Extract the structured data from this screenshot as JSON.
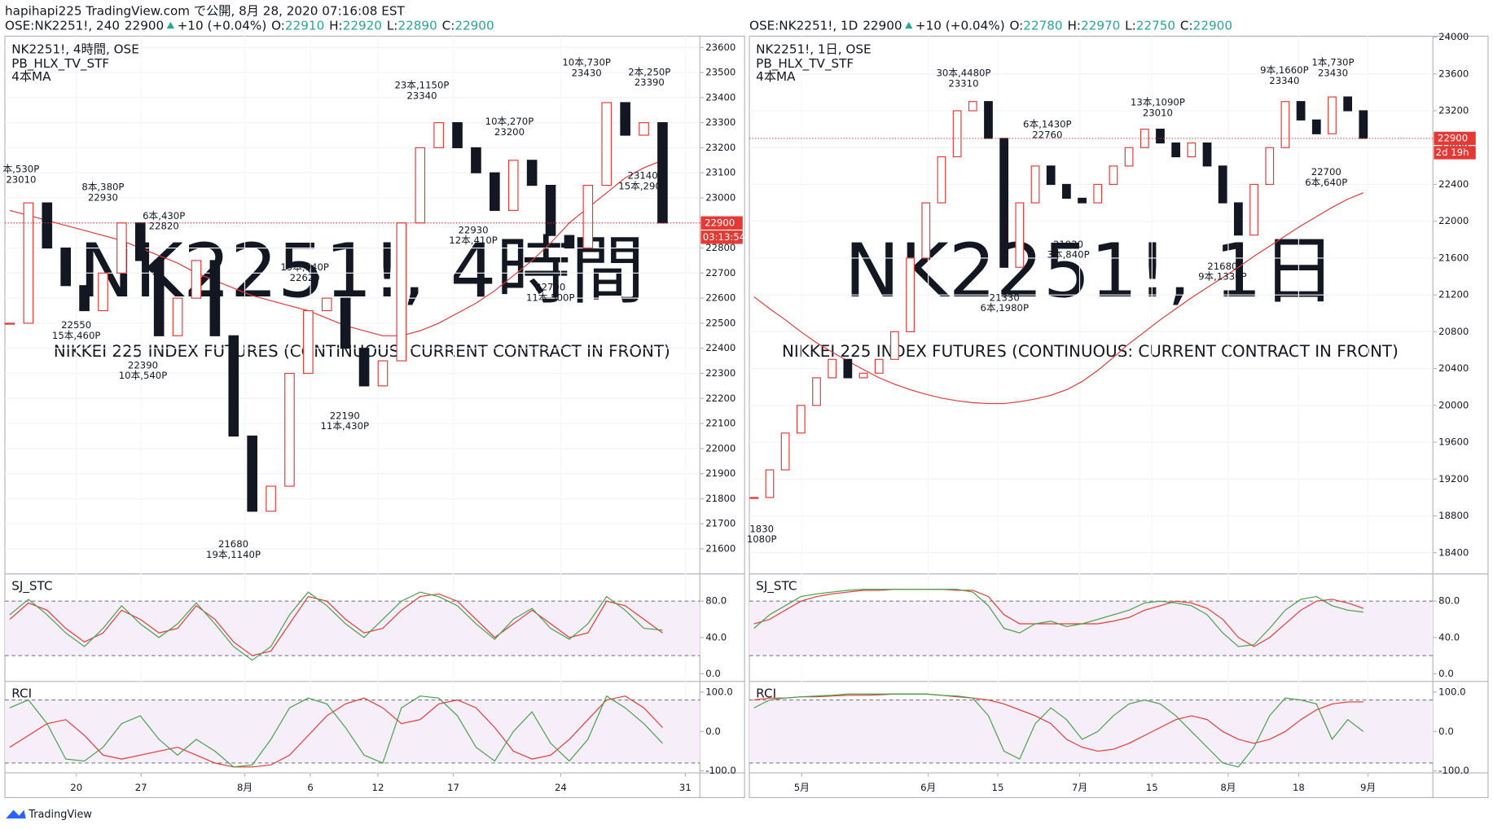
{
  "header": {
    "line1": "hapihapi225 TradingView.com で公開, 8月 28, 2020 07:16:08 EST"
  },
  "footer": "TradingView",
  "chart_data": [
    {
      "type": "candlestick",
      "legend": {
        "symbol": "OSE:NK2251!, 240",
        "last": 22900,
        "change": "+10 (+0.04%)",
        "ohlc": [
          {
            "label": "O:",
            "value": 22910
          },
          {
            "label": "H:",
            "value": 22920
          },
          {
            "label": "L:",
            "value": 22890
          },
          {
            "label": "C:",
            "value": 22900
          }
        ]
      },
      "title": "NK2251!, 4時間, OSE",
      "subtitle": "PB_HLX_TV_STF",
      "note": "4本MA",
      "watermark": "NK2251!, 4時間",
      "watermark_sub": "NIKKEI 225 INDEX FUTURES (CONTINUOUS: CURRENT CONTRACT IN FRONT)",
      "close": [
        22500,
        22980,
        22800,
        22650,
        22550,
        22700,
        22900,
        22750,
        22450,
        22600,
        22750,
        22450,
        22050,
        21750,
        21850,
        22300,
        22550,
        22600,
        22400,
        22250,
        22350,
        22900,
        23200,
        23300,
        23200,
        23100,
        22950,
        23150,
        23050,
        22850,
        22800,
        23050,
        23380,
        23250,
        23300,
        22900
      ],
      "up_color": "#e53935",
      "down_color": "#131722",
      "ma": {
        "color": "#e53935",
        "values": [
          22950,
          22930,
          22910,
          22890,
          22870,
          22850,
          22830,
          22800,
          22770,
          22740,
          22700,
          22670,
          22640,
          22610,
          22590,
          22570,
          22550,
          22520,
          22490,
          22470,
          22450,
          22450,
          22470,
          22500,
          22540,
          22580,
          22630,
          22690,
          22750,
          22820,
          22900,
          22960,
          23020,
          23080,
          23120,
          23150
        ]
      },
      "last_price": 22900,
      "countdown": "03:13:54",
      "ylim": [
        21500,
        23645
      ],
      "yticks": [
        21600,
        21700,
        21800,
        21900,
        22000,
        22100,
        22200,
        22300,
        22400,
        22500,
        22600,
        22700,
        22800,
        22900,
        23000,
        23100,
        23200,
        23300,
        23400,
        23500,
        23600
      ],
      "xlim": [
        -0.26,
        37
      ],
      "xticks": [
        {
          "value": 3.57,
          "label": "20"
        },
        {
          "value": 7.04,
          "label": "27"
        },
        {
          "value": 12.6,
          "label": "8月"
        },
        {
          "value": 16.12,
          "label": "6"
        },
        {
          "value": 19.74,
          "label": "12"
        },
        {
          "value": 23.78,
          "label": "17"
        },
        {
          "value": 29.54,
          "label": "24"
        },
        {
          "value": 36.22,
          "label": "31"
        }
      ],
      "grid": true,
      "annotations": [
        [
          "本,530P",
          "23010"
        ],
        [
          "8本,380P",
          "22930"
        ],
        [
          "6本,430P",
          "22820"
        ],
        [
          "22550",
          "15本,460P"
        ],
        [
          "22390",
          "10本,540P"
        ],
        [
          "19本,940P",
          "22620"
        ],
        [
          "22190",
          "11本,430P"
        ],
        [
          "21680",
          "19本,1140P"
        ],
        [
          "23本,1150P",
          "23340"
        ],
        [
          "10本,270P",
          "23200"
        ],
        [
          "22930",
          "12本,410P"
        ],
        [
          "22700",
          "11本,500P"
        ],
        [
          "10本,730P",
          "23430"
        ],
        [
          "2本,250P",
          "23390"
        ],
        [
          "23140",
          "15本,290P"
        ]
      ],
      "panes": [
        {
          "title": "SJ_STC",
          "ylim": [
            -8.5,
            110
          ],
          "yticks": [
            {
              "value": 0,
              "label": "0.0"
            },
            {
              "value": 40,
              "label": "40.0"
            },
            {
              "value": 80,
              "label": "80.0"
            }
          ],
          "levels": [
            20,
            80
          ],
          "series": [
            {
              "color": "#e53935",
              "values": [
                60,
                78,
                70,
                50,
                35,
                45,
                70,
                60,
                45,
                50,
                75,
                60,
                35,
                20,
                25,
                55,
                85,
                80,
                60,
                45,
                50,
                70,
                85,
                88,
                80,
                60,
                40,
                55,
                70,
                55,
                40,
                45,
                80,
                75,
                60,
                45
              ]
            },
            {
              "color": "#43a047",
              "values": [
                65,
                82,
                65,
                45,
                30,
                50,
                75,
                55,
                40,
                55,
                78,
                55,
                30,
                15,
                30,
                65,
                90,
                75,
                55,
                40,
                60,
                80,
                90,
                85,
                75,
                55,
                38,
                60,
                72,
                50,
                38,
                55,
                85,
                70,
                50,
                48
              ]
            }
          ]
        },
        {
          "title": "RCI",
          "ylim": [
            -105,
            127
          ],
          "yticks": [
            {
              "value": -100,
              "label": "-100.0"
            },
            {
              "value": 0,
              "label": "0.0"
            },
            {
              "value": 100,
              "label": "100.0"
            }
          ],
          "levels": [
            -80,
            80
          ],
          "series": [
            {
              "color": "#e53935",
              "values": [
                -40,
                -10,
                20,
                30,
                -10,
                -60,
                -70,
                -60,
                -50,
                -40,
                -60,
                -80,
                -90,
                -90,
                -85,
                -60,
                -10,
                40,
                70,
                85,
                60,
                20,
                30,
                70,
                80,
                60,
                10,
                -50,
                -70,
                -60,
                -20,
                30,
                80,
                90,
                60,
                10
              ]
            },
            {
              "color": "#43a047",
              "values": [
                60,
                80,
                20,
                -70,
                -75,
                -40,
                20,
                40,
                -20,
                -60,
                -20,
                -50,
                -90,
                -85,
                -20,
                60,
                85,
                70,
                10,
                -60,
                -80,
                60,
                90,
                85,
                40,
                -40,
                -75,
                0,
                50,
                -30,
                -75,
                -20,
                90,
                60,
                20,
                -30
              ]
            }
          ]
        }
      ]
    },
    {
      "type": "candlestick",
      "legend": {
        "symbol": "OSE:NK2251!, 1D",
        "last": 22900,
        "change": "+10 (+0.04%)",
        "ohlc": [
          {
            "label": "O:",
            "value": 22780
          },
          {
            "label": "H:",
            "value": 22970
          },
          {
            "label": "L:",
            "value": 22750
          },
          {
            "label": "C:",
            "value": 22900
          }
        ]
      },
      "title": "NK2251!, 1日, OSE",
      "subtitle": "PB_HLX_TV_STF",
      "note": "4本MA",
      "watermark": "NK2251!, 1日",
      "watermark_sub": "NIKKEI 225 INDEX FUTURES (CONTINUOUS: CURRENT CONTRACT IN FRONT)",
      "close": [
        19000,
        19300,
        19700,
        20000,
        20300,
        20500,
        20300,
        20350,
        20500,
        20800,
        21600,
        22200,
        22700,
        23200,
        23300,
        22900,
        21500,
        22200,
        22600,
        22400,
        22250,
        22200,
        22400,
        22600,
        22800,
        23000,
        22850,
        22700,
        22850,
        22600,
        22200,
        21850,
        22400,
        22800,
        23300,
        23100,
        22950,
        23350,
        23200,
        22900
      ],
      "up_color": "#e53935",
      "down_color": "#131722",
      "ma": {
        "color": "#e53935",
        "values": [
          21180,
          21050,
          20930,
          20800,
          20680,
          20580,
          20480,
          20390,
          20300,
          20230,
          20170,
          20120,
          20080,
          20050,
          20030,
          20020,
          20020,
          20040,
          20070,
          20110,
          20170,
          20260,
          20380,
          20520,
          20670,
          20800,
          20930,
          21050,
          21170,
          21280,
          21390,
          21500,
          21620,
          21730,
          21840,
          21950,
          22050,
          22150,
          22240,
          22310
        ]
      },
      "last_price": 22900,
      "countdown": "2d 19h",
      "ylim": [
        18170,
        24010
      ],
      "yticks": [
        18400,
        18800,
        19200,
        19600,
        20000,
        20400,
        20800,
        21200,
        21600,
        22000,
        22400,
        22800,
        23200,
        23600,
        24000
      ],
      "xlim": [
        -0.3,
        43.45
      ],
      "xticks": [
        {
          "value": 3.05,
          "label": "5月"
        },
        {
          "value": 11.15,
          "label": "6月"
        },
        {
          "value": 15.6,
          "label": "15"
        },
        {
          "value": 20.84,
          "label": "7月"
        },
        {
          "value": 25.47,
          "label": "15"
        },
        {
          "value": 30.35,
          "label": "8月"
        },
        {
          "value": 34.86,
          "label": "18"
        },
        {
          "value": 39.3,
          "label": "9月"
        }
      ],
      "grid": true,
      "annotations": [
        [
          "30本,4480P",
          "23310"
        ],
        [
          "6本,1430P",
          "22760"
        ],
        [
          "13本,1090P",
          "23010"
        ],
        [
          "9本,1660P",
          "23340"
        ],
        [
          "1本,730P",
          "23430"
        ],
        [
          "21330",
          "6本,1980P"
        ],
        [
          "21920",
          "3本,840P"
        ],
        [
          "21680",
          "9本,1330P"
        ],
        [
          "22700",
          "6本,640P"
        ],
        [
          "1830",
          "1080P"
        ]
      ],
      "panes": [
        {
          "title": "SJ_STC",
          "ylim": [
            -8.5,
            110
          ],
          "yticks": [
            {
              "value": 0,
              "label": "0.0"
            },
            {
              "value": 40,
              "label": "40.0"
            },
            {
              "value": 80,
              "label": "80.0"
            }
          ],
          "levels": [
            20,
            80
          ],
          "series": [
            {
              "color": "#e53935",
              "values": [
                55,
                60,
                70,
                80,
                85,
                88,
                90,
                92,
                92,
                93,
                93,
                93,
                93,
                92,
                92,
                85,
                65,
                55,
                55,
                55,
                55,
                55,
                55,
                58,
                62,
                70,
                75,
                80,
                78,
                72,
                60,
                40,
                30,
                40,
                55,
                70,
                80,
                82,
                78,
                72
              ]
            },
            {
              "color": "#43a047",
              "values": [
                50,
                65,
                75,
                85,
                88,
                90,
                92,
                93,
                93,
                93,
                93,
                93,
                93,
                93,
                90,
                75,
                50,
                45,
                55,
                58,
                52,
                55,
                60,
                65,
                70,
                78,
                80,
                78,
                75,
                65,
                45,
                30,
                32,
                50,
                70,
                82,
                85,
                75,
                70,
                68
              ]
            }
          ]
        },
        {
          "title": "RCI",
          "ylim": [
            -105,
            127
          ],
          "yticks": [
            {
              "value": -100,
              "label": "-100.0"
            },
            {
              "value": 0,
              "label": "0.0"
            },
            {
              "value": 100,
              "label": "100.0"
            }
          ],
          "levels": [
            -80,
            80
          ],
          "series": [
            {
              "color": "#e53935",
              "values": [
                80,
                85,
                85,
                88,
                88,
                90,
                92,
                92,
                93,
                95,
                95,
                95,
                92,
                88,
                85,
                80,
                70,
                55,
                40,
                20,
                -20,
                -40,
                -50,
                -45,
                -30,
                -10,
                10,
                30,
                40,
                30,
                0,
                -20,
                -30,
                -20,
                0,
                30,
                55,
                70,
                75,
                75
              ]
            },
            {
              "color": "#43a047",
              "values": [
                60,
                80,
                85,
                88,
                90,
                92,
                95,
                95,
                95,
                95,
                95,
                95,
                92,
                90,
                85,
                40,
                -50,
                -70,
                20,
                60,
                30,
                -20,
                0,
                40,
                70,
                80,
                70,
                40,
                0,
                -40,
                -80,
                -90,
                -40,
                40,
                85,
                80,
                70,
                -20,
                30,
                0
              ]
            }
          ]
        }
      ]
    }
  ]
}
